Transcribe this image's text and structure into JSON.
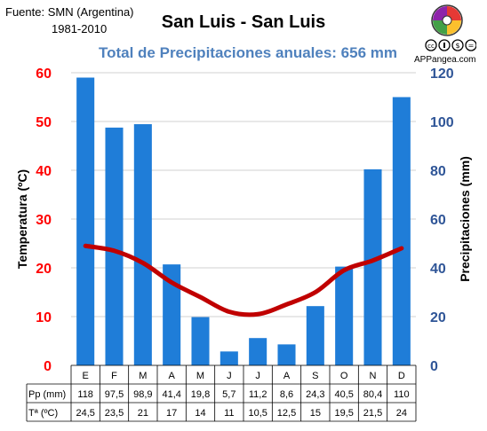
{
  "header": {
    "source": "Fuente: SMN (Argentina)",
    "period": "1981-2010",
    "title": "San Luis - San Luis",
    "subtitle": "Total de Precipitaciones anuales: 656 mm",
    "brand": "APPangea.com"
  },
  "colors": {
    "bar": "#1f7dd8",
    "line": "#c00000",
    "left_axis": "#ff0000",
    "right_axis": "#2f5597",
    "subtitle": "#4f81bd"
  },
  "chart_data": {
    "type": "bar",
    "categories": [
      "E",
      "F",
      "M",
      "A",
      "M",
      "J",
      "J",
      "A",
      "S",
      "O",
      "N",
      "D"
    ],
    "series": [
      {
        "name": "Pp (mm)",
        "type": "bar",
        "axis": "right",
        "values": [
          118,
          97.5,
          98.9,
          41.4,
          19.8,
          5.7,
          11.2,
          8.6,
          24.3,
          40.5,
          80.4,
          110
        ],
        "labels": [
          "118",
          "97,5",
          "98,9",
          "41,4",
          "19,8",
          "5,7",
          "11,2",
          "8,6",
          "24,3",
          "40,5",
          "80,4",
          "110"
        ]
      },
      {
        "name": "Tª (ºC)",
        "type": "line",
        "axis": "left",
        "values": [
          24.5,
          23.5,
          21,
          17,
          14,
          11,
          10.5,
          12.5,
          15,
          19.5,
          21.5,
          24
        ],
        "labels": [
          "24,5",
          "23,5",
          "21",
          "17",
          "14",
          "11",
          "10,5",
          "12,5",
          "15",
          "19,5",
          "21,5",
          "24"
        ]
      }
    ],
    "y_left": {
      "label": "Temperatura (ºC)",
      "range": [
        0,
        60
      ],
      "ticks": [
        "0",
        "10",
        "20",
        "30",
        "40",
        "50",
        "60"
      ]
    },
    "y_right": {
      "label": "Precipitaciones (mm)",
      "range": [
        0,
        120
      ],
      "ticks": [
        "0",
        "20",
        "40",
        "60",
        "80",
        "100",
        "120"
      ]
    },
    "grid": true
  }
}
